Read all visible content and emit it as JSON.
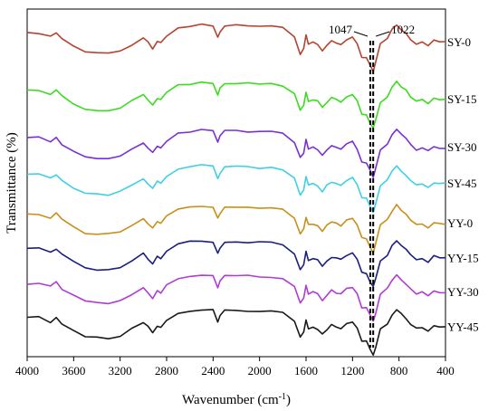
{
  "chart_data": {
    "type": "line",
    "xlabel": "Wavenumber (cm",
    "xlabel_sup": "-1",
    "xlabel_tail": ")",
    "ylabel": "Transmittance (%)",
    "xlim": [
      4000,
      400
    ],
    "x_reversed": true,
    "xticks": [
      "4000",
      "3600",
      "3200",
      "2800",
      "2400",
      "2000",
      "1600",
      "1200",
      "800",
      "400"
    ],
    "grid": false,
    "markers": [
      {
        "label": "1047",
        "x": 1047,
        "side": "left"
      },
      {
        "label": "1022",
        "x": 1022,
        "side": "right"
      }
    ],
    "x_points": [
      4000,
      3900,
      3800,
      3750,
      3700,
      3600,
      3500,
      3400,
      3300,
      3200,
      3100,
      3000,
      2960,
      2920,
      2880,
      2850,
      2800,
      2700,
      2600,
      2500,
      2400,
      2360,
      2340,
      2300,
      2200,
      2100,
      2000,
      1900,
      1800,
      1700,
      1650,
      1620,
      1600,
      1580,
      1540,
      1500,
      1460,
      1420,
      1380,
      1340,
      1300,
      1250,
      1200,
      1160,
      1120,
      1080,
      1047,
      1022,
      1000,
      960,
      900,
      860,
      820,
      780,
      740,
      700,
      650,
      600,
      550,
      500,
      450,
      400
    ],
    "offsets": [
      0.0,
      1.58,
      2.9,
      3.9,
      5.0,
      5.96,
      6.9,
      7.86
    ],
    "shape": [
      0.3,
      0.28,
      0.4,
      0.28,
      0.45,
      0.65,
      0.8,
      0.85,
      0.85,
      0.78,
      0.6,
      0.4,
      0.55,
      0.7,
      0.5,
      0.55,
      0.35,
      0.15,
      0.1,
      0.05,
      0.08,
      0.4,
      0.25,
      0.1,
      0.08,
      0.1,
      0.1,
      0.12,
      0.15,
      0.4,
      0.85,
      0.7,
      0.35,
      0.6,
      0.55,
      0.6,
      0.75,
      0.6,
      0.5,
      0.55,
      0.6,
      0.45,
      0.4,
      0.6,
      0.95,
      0.95,
      1.2,
      1.35,
      1.1,
      0.6,
      0.45,
      0.2,
      0.05,
      0.2,
      0.3,
      0.45,
      0.6,
      0.55,
      0.65,
      0.5,
      0.55,
      0.55
    ],
    "series": [
      {
        "name": "SY-0",
        "color": "#b5432f"
      },
      {
        "name": "SY-15",
        "color": "#3bdc1e"
      },
      {
        "name": "SY-30",
        "color": "#7a2fd6"
      },
      {
        "name": "SY-45",
        "color": "#3fcfe6"
      },
      {
        "name": "YY-0",
        "color": "#c8901a"
      },
      {
        "name": "YY-15",
        "color": "#1a1f80"
      },
      {
        "name": "YY-30",
        "color": "#b03bd6"
      },
      {
        "name": "YY-45",
        "color": "#1a1a1a"
      }
    ]
  }
}
